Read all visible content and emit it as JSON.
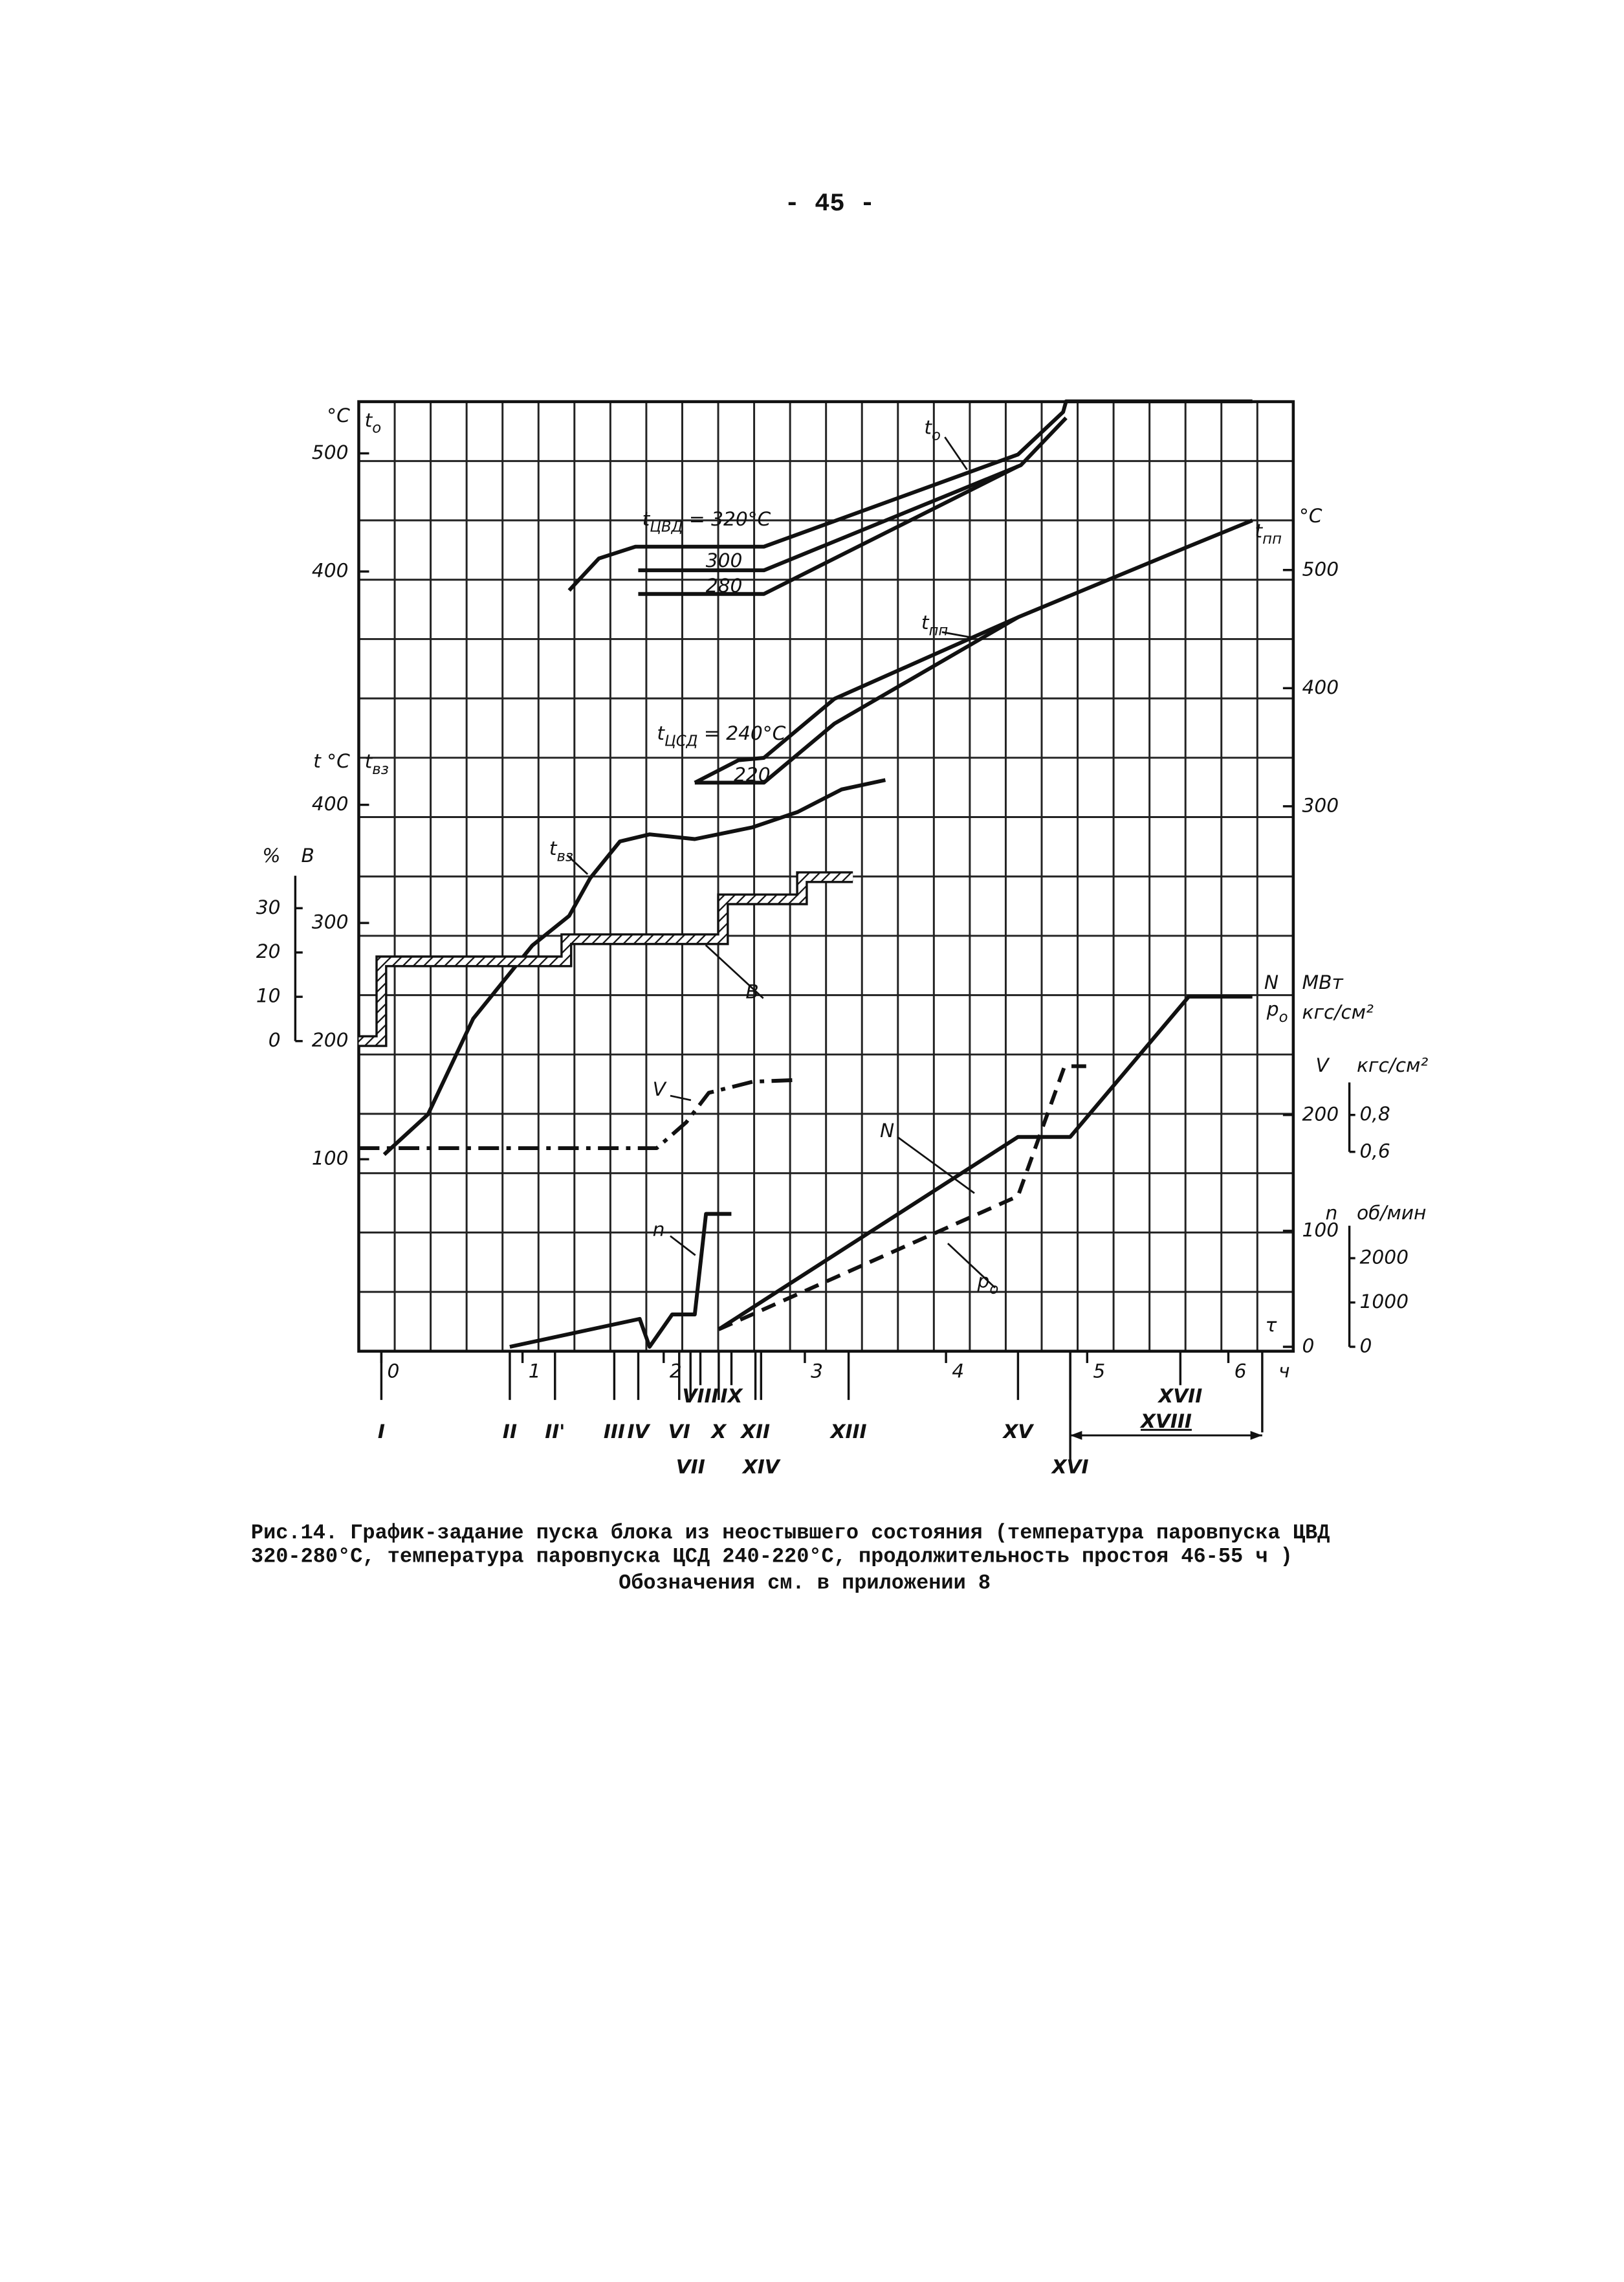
{
  "page_number": "- 45 -",
  "chart_data": {
    "type": "line",
    "xlim": [
      -0.16,
      6.46
    ],
    "xticks": [
      0,
      1,
      2,
      3,
      4,
      5,
      6
    ],
    "x_symbol": "τ",
    "x_unit": "ч",
    "axes": {
      "t0": {
        "ylim": [
          -260,
          543.75
        ],
        "yticks": [
          400,
          500
        ],
        "unit": "°C",
        "symbol": "t",
        "symbol_sub": "o"
      },
      "t": {
        "ylim": [
          -62.5,
          741.25
        ],
        "yticks": [
          100,
          200,
          300,
          400
        ],
        "unit": "t °C",
        "symbol": "t",
        "symbol_sub": "вз"
      },
      "B": {
        "ylim": [
          -70,
          144.33
        ],
        "yticks": [
          0,
          10,
          20,
          30
        ],
        "unit": "%",
        "symbol": "B"
      },
      "tpp": {
        "ylim": [
          -161.25,
          642.5
        ],
        "yticks": [
          300,
          400,
          500
        ],
        "unit": "°C"
      },
      "N": {
        "ylim": [
          -3.8,
          815.3
        ],
        "yticks": [
          0,
          100,
          200
        ],
        "unit": "МВт",
        "unit2": "кгс/см²",
        "symbol": "N",
        "symbol2": "p",
        "symbol2_sub": "o"
      },
      "V": {
        "ylim": [
          -0.48,
          4.664
        ],
        "yticks": [
          {
            "value": 0.6,
            "label": "0,6"
          },
          {
            "value": 0.8,
            "label": "0,8"
          }
        ],
        "unit": "кгс/см²",
        "symbol": "V"
      },
      "n": {
        "ylim": [
          -100,
          21333
        ],
        "yticks": [
          0,
          1000,
          2000
        ],
        "unit": "об/мин",
        "symbol": "n"
      }
    },
    "series": [
      {
        "name": "t",
        "name_sub": "ЦВД",
        "name_rest": " = 320°C",
        "axis": "t0",
        "style": "solid",
        "x": [
          1.33,
          1.54,
          1.8,
          2.71,
          4.51,
          4.83,
          4.85,
          5.66,
          6.17
        ],
        "values": [
          384,
          411,
          421,
          421,
          499,
          535,
          544,
          544,
          544
        ]
      },
      {
        "name": "300",
        "axis": "t0",
        "style": "solid",
        "x": [
          1.82,
          2.71,
          4.53,
          4.85
        ],
        "values": [
          401,
          401,
          490,
          530
        ]
      },
      {
        "name": "280",
        "axis": "t0",
        "style": "solid",
        "x": [
          1.82,
          2.71,
          4.51
        ],
        "values": [
          381,
          381,
          489
        ]
      },
      {
        "name": "t",
        "name_sub": "ЦСД",
        "name_rest": " = 240°C",
        "axis": "tpp",
        "style": "solid",
        "x": [
          2.22,
          2.53,
          2.71,
          3.21,
          4.51,
          5.72,
          6.17
        ],
        "values": [
          320,
          339,
          341,
          391,
          460,
          520,
          542
        ]
      },
      {
        "name": "220",
        "axis": "tpp",
        "style": "solid",
        "x": [
          2.22,
          2.71,
          3.21,
          4.51
        ],
        "values": [
          320,
          320,
          370,
          460
        ]
      },
      {
        "name": "t",
        "name_sub": "вз",
        "axis": "t",
        "style": "solid",
        "x": [
          0.02,
          0.33,
          0.65,
          1.07,
          1.33,
          1.48,
          1.69,
          1.9,
          2.22,
          2.63,
          2.95,
          3.26,
          3.57
        ],
        "values": [
          104,
          138,
          219,
          281,
          306,
          338,
          369,
          375,
          371,
          381,
          394,
          413,
          421
        ]
      },
      {
        "name": "B",
        "axis": "B",
        "style": "hatched",
        "x": [
          -0.16,
          0,
          0,
          1.31,
          1.31,
          2.42,
          2.42,
          2.98,
          2.98,
          3.34
        ],
        "values": [
          0,
          0,
          18,
          18,
          23,
          23,
          32,
          32,
          37,
          37
        ]
      },
      {
        "name": "V",
        "axis": "V",
        "style": "dashdot",
        "x": [
          -0.16,
          1.95,
          2.16,
          2.32,
          2.63,
          2.95
        ],
        "values": [
          0.62,
          0.62,
          0.76,
          0.92,
          0.98,
          0.99
        ]
      },
      {
        "name": "n",
        "axis": "n",
        "style": "solid",
        "x": [
          0.91,
          1.83,
          1.9,
          2.06,
          2.22,
          2.3,
          2.48
        ],
        "values": [
          0,
          630,
          0,
          730,
          730,
          3000,
          3000
        ]
      },
      {
        "name": "N",
        "axis": "N",
        "style": "solid",
        "x": [
          2.39,
          4.51,
          4.88,
          5.72,
          6.17
        ],
        "values": [
          15,
          181,
          181,
          302,
          302
        ]
      },
      {
        "name": "p",
        "name_sub": "o",
        "axis": "N",
        "style": "dashed",
        "x": [
          2.39,
          4.51,
          4.84,
          5.04
        ],
        "values": [
          15,
          130,
          242,
          242
        ]
      }
    ],
    "annotations": [
      {
        "text": "t",
        "sub": "o"
      },
      {
        "text": "t",
        "sub": "пп"
      },
      {
        "text": "t",
        "sub": "пп"
      }
    ],
    "stages": [
      {
        "label": "I",
        "x": 0
      },
      {
        "label": "II",
        "x": 0.91
      },
      {
        "label": "II'",
        "x": 1.23
      },
      {
        "label": "III",
        "x": 1.65
      },
      {
        "label": "IV",
        "x": 1.82
      },
      {
        "label": "VI",
        "x": 2.11
      },
      {
        "label": "VII",
        "x": 2.19
      },
      {
        "label": "VIII",
        "x": 2.26
      },
      {
        "label": "X",
        "x": 2.39
      },
      {
        "label": "IX",
        "x": 2.48
      },
      {
        "label": "XII",
        "x": 2.65
      },
      {
        "label": "XIV",
        "x": 2.69
      },
      {
        "label": "XIII",
        "x": 3.31
      },
      {
        "label": "XV",
        "x": 4.51
      },
      {
        "label": "XVI",
        "x": 4.88
      },
      {
        "label": "XVII",
        "x": 5.66
      },
      {
        "label": "XVIII",
        "x": [
          4.88,
          6.24
        ]
      }
    ]
  },
  "caption": {
    "lines": [
      "Рис.14. График-задание пуска блока из неостывшего состояния (температура паровпуска ЦВД",
      "320-280°С, температура паровпуска ЦСД 240-220°С, продолжительность простоя 46-55 ч )"
    ],
    "note": "Обозначения см. в приложении 8"
  }
}
